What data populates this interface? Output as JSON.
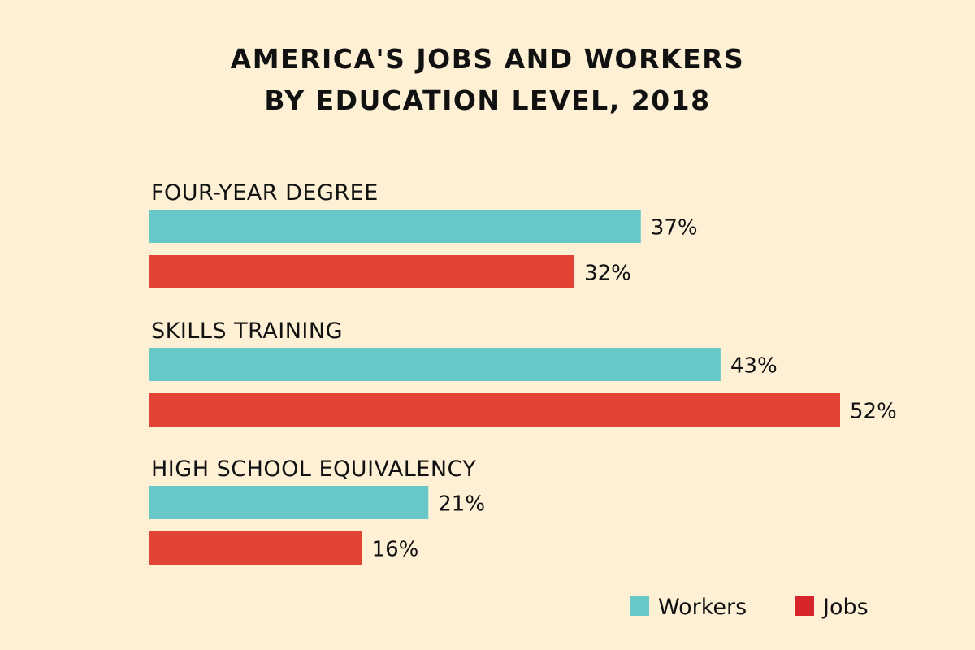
{
  "chart_data": {
    "type": "bar",
    "orientation": "horizontal",
    "title": [
      "AMERICA'S JOBS AND WORKERS",
      "BY EDUCATION LEVEL, 2018"
    ],
    "categories": [
      "FOUR-YEAR DEGREE",
      "SKILLS TRAINING",
      "HIGH SCHOOL EQUIVALENCY"
    ],
    "series": [
      {
        "name": "Workers",
        "values": [
          37,
          43,
          21
        ],
        "labels": [
          "37%",
          "43%",
          "21%"
        ],
        "color": "#67c8c7"
      },
      {
        "name": "Jobs",
        "values": [
          32,
          52,
          16
        ],
        "labels": [
          "32%",
          "52%",
          "16%"
        ],
        "color": "#e24335"
      }
    ],
    "xlim": [
      0,
      52
    ],
    "grid": false,
    "legend": "bottom-right",
    "legend_colors": [
      "#67c8c7",
      "#d8242b"
    ]
  }
}
